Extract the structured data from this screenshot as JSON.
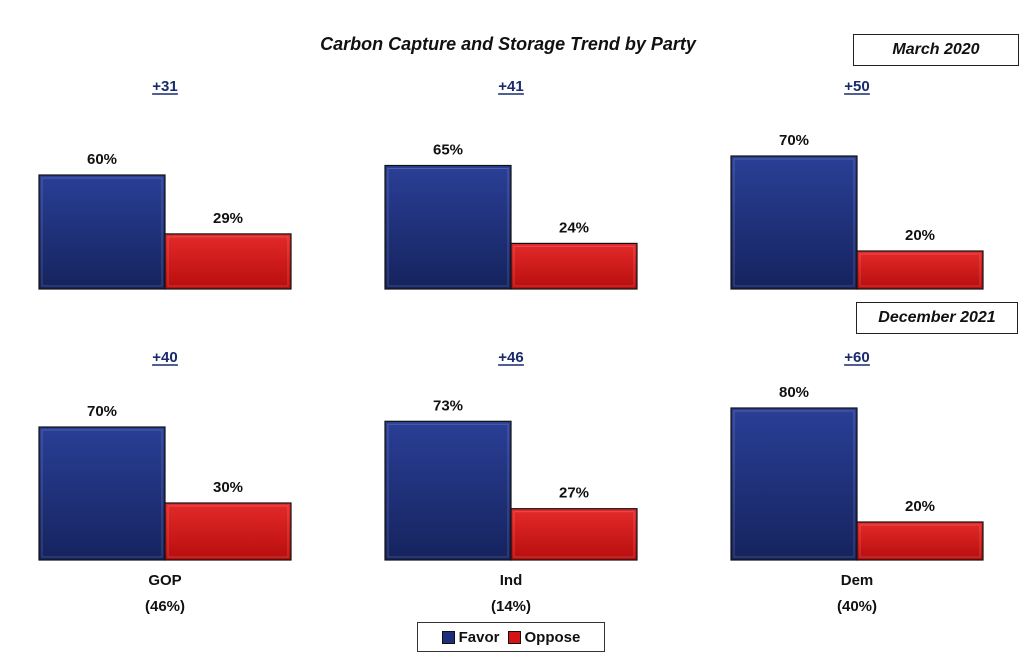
{
  "chart_data": {
    "type": "bar",
    "title": "Carbon Capture and Storage Trend by Party",
    "series": [
      {
        "name": "Favor",
        "color": "#1c2f7a"
      },
      {
        "name": "Oppose",
        "color": "#d41414"
      }
    ],
    "categories": [
      {
        "name": "GOP",
        "share": "(46%)"
      },
      {
        "name": "Ind",
        "share": "(14%)"
      },
      {
        "name": "Dem",
        "share": "(40%)"
      }
    ],
    "periods": [
      {
        "label": "March 2020",
        "groups": [
          {
            "margin": "+31",
            "favor": 60,
            "oppose": 29,
            "favor_label": "60%",
            "oppose_label": "29%"
          },
          {
            "margin": "+41",
            "favor": 65,
            "oppose": 24,
            "favor_label": "65%",
            "oppose_label": "24%"
          },
          {
            "margin": "+50",
            "favor": 70,
            "oppose": 20,
            "favor_label": "70%",
            "oppose_label": "20%"
          }
        ]
      },
      {
        "label": "December 2021",
        "groups": [
          {
            "margin": "+40",
            "favor": 70,
            "oppose": 30,
            "favor_label": "70%",
            "oppose_label": "30%"
          },
          {
            "margin": "+46",
            "favor": 73,
            "oppose": 27,
            "favor_label": "73%",
            "oppose_label": "27%"
          },
          {
            "margin": "+60",
            "favor": 80,
            "oppose": 20,
            "favor_label": "80%",
            "oppose_label": "20%"
          }
        ]
      }
    ],
    "legend": {
      "position": "bottom-center",
      "items": [
        "Favor",
        "Oppose"
      ]
    }
  }
}
